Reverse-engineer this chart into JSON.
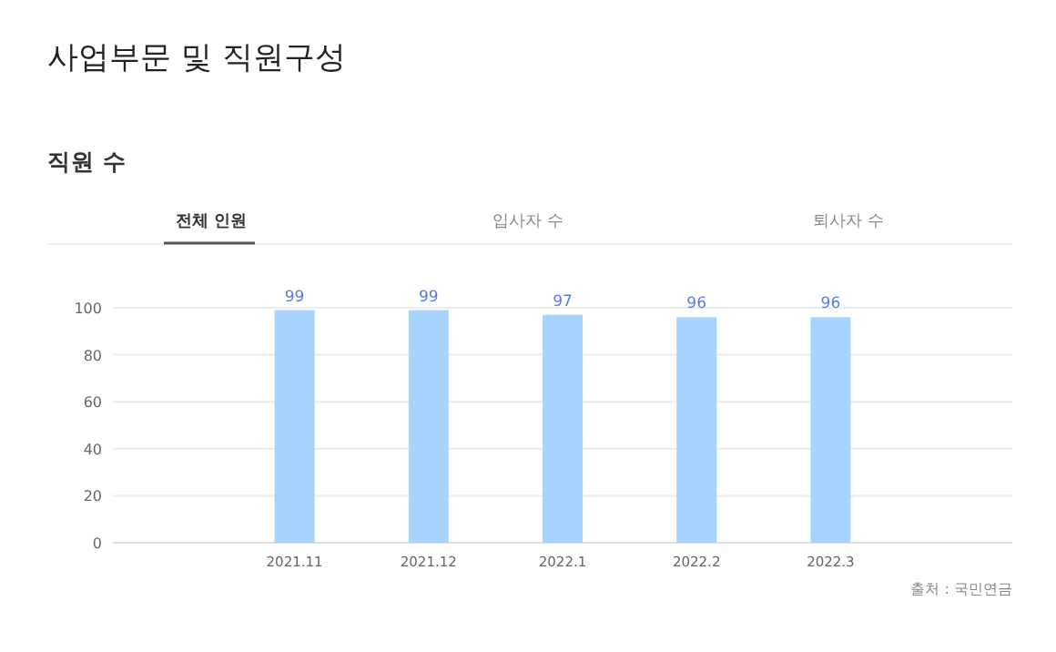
{
  "chart_data": {
    "type": "bar",
    "title": "사업부문 및 직원구성",
    "subtitle": "직원 수",
    "annotations": [
      "전체 인원",
      "입사자 수",
      "퇴사자 수",
      "출처 : 국민연금"
    ],
    "categories": [
      "2021.11",
      "2021.12",
      "2022.1",
      "2022.2",
      "2022.3"
    ],
    "values": [
      99,
      99,
      97,
      96,
      96
    ],
    "color": "#a6d4fd",
    "ylim": [
      0,
      100
    ],
    "yticks": [
      0,
      20,
      40,
      60,
      80,
      100
    ],
    "grid": "y",
    "data_labels": true
  }
}
